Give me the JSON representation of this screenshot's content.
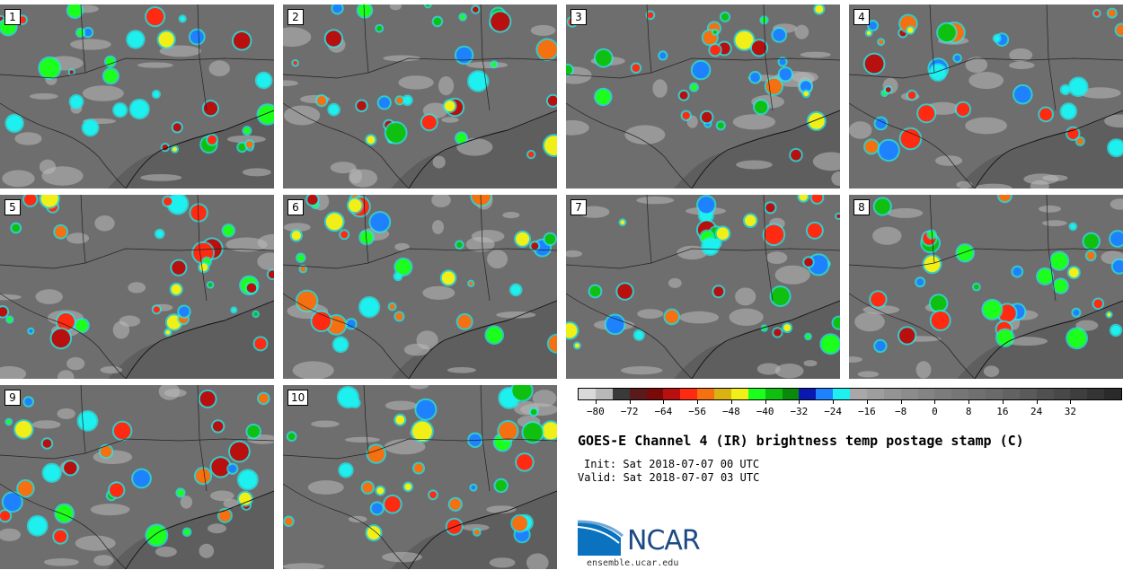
{
  "panels": [
    {
      "label": "1"
    },
    {
      "label": "2"
    },
    {
      "label": "3"
    },
    {
      "label": "4"
    },
    {
      "label": "5"
    },
    {
      "label": "6"
    },
    {
      "label": "7"
    },
    {
      "label": "8"
    },
    {
      "label": "9"
    },
    {
      "label": "10"
    }
  ],
  "colorbar": {
    "ticks": [
      "−80",
      "−72",
      "−64",
      "−56",
      "−48",
      "−40",
      "−32",
      "−24",
      "−16",
      "−8",
      "0",
      "8",
      "16",
      "24",
      "32"
    ],
    "colors": [
      "#d9d9d9",
      "#b8b8b8",
      "#3a3a3a",
      "#5a1a1a",
      "#7a0a0a",
      "#b80f0f",
      "#ff2a12",
      "#f57010",
      "#d9b312",
      "#f0f018",
      "#1cff1c",
      "#10c010",
      "#0a8a0a",
      "#0a18b0",
      "#1e82ff",
      "#1ef0f0",
      "#a8a8a8",
      "#9e9e9e",
      "#949494",
      "#8c8c8c",
      "#848484",
      "#7c7c7c",
      "#767676",
      "#707070",
      "#6a6a6a",
      "#626262",
      "#5a5a5a",
      "#505050",
      "#484848",
      "#3e3e3e",
      "#343434",
      "#2a2a2a"
    ]
  },
  "title": "GOES-E Channel 4 (IR) brightness temp postage stamp (C)",
  "init": "Init: Sat 2018-07-07 00 UTC",
  "valid": "Valid: Sat 2018-07-07 03 UTC",
  "logo": {
    "text": "NCAR",
    "url": "ensemble.ucar.edu",
    "accent": "#1d4a87"
  }
}
